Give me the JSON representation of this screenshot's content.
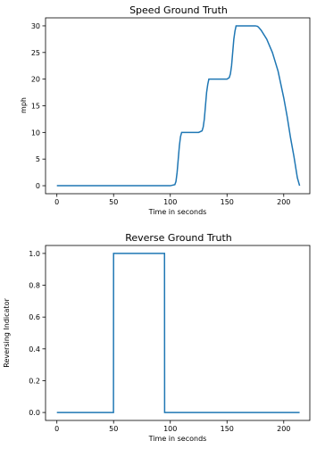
{
  "chart_data": [
    {
      "type": "line",
      "title": "Speed Ground Truth",
      "xlabel": "Time in seconds",
      "ylabel": "mph",
      "xlim": [
        -10,
        223
      ],
      "ylim": [
        -1.5,
        31.5
      ],
      "xticks": [
        0,
        50,
        100,
        150,
        200
      ],
      "yticks": [
        0,
        5,
        10,
        15,
        20,
        25,
        30
      ],
      "grid": false,
      "series": [
        {
          "color": "#1f77b4",
          "x": [
            0,
            50,
            100,
            104,
            105,
            106,
            107,
            108,
            109,
            110,
            115,
            120,
            125,
            128,
            129,
            130,
            131,
            132,
            133,
            134,
            140,
            145,
            150,
            152,
            153,
            154,
            155,
            156,
            157,
            158,
            163,
            170,
            175,
            177,
            178,
            180,
            185,
            190,
            195,
            200,
            203,
            206,
            209,
            212,
            214
          ],
          "y": [
            0,
            0,
            0,
            0.2,
            0.8,
            2.5,
            5,
            7.5,
            9.2,
            10,
            10,
            10,
            10,
            10.3,
            11,
            12.5,
            15,
            17.5,
            19,
            20,
            20,
            20,
            20,
            20.3,
            21,
            22.5,
            25,
            27.5,
            29,
            30,
            30,
            30,
            30,
            29.9,
            29.7,
            29.2,
            27.5,
            25,
            21.5,
            16.5,
            13,
            9,
            5.5,
            1.5,
            0
          ]
        }
      ]
    },
    {
      "type": "line",
      "title": "Reverse Ground Truth",
      "xlabel": "Time in seconds",
      "ylabel": "Reversing Indicator",
      "xlim": [
        -10,
        223
      ],
      "ylim": [
        -0.05,
        1.05
      ],
      "xticks": [
        0,
        50,
        100,
        150,
        200
      ],
      "yticks": [
        0.0,
        0.2,
        0.4,
        0.6,
        0.8,
        1.0
      ],
      "ytick_labels": [
        "0.0",
        "0.2",
        "0.4",
        "0.6",
        "0.8",
        "1.0"
      ],
      "grid": false,
      "series": [
        {
          "color": "#1f77b4",
          "x": [
            0,
            49.9,
            50,
            94.9,
            95,
            214
          ],
          "y": [
            0,
            0,
            1,
            1,
            0,
            0
          ]
        }
      ]
    }
  ]
}
